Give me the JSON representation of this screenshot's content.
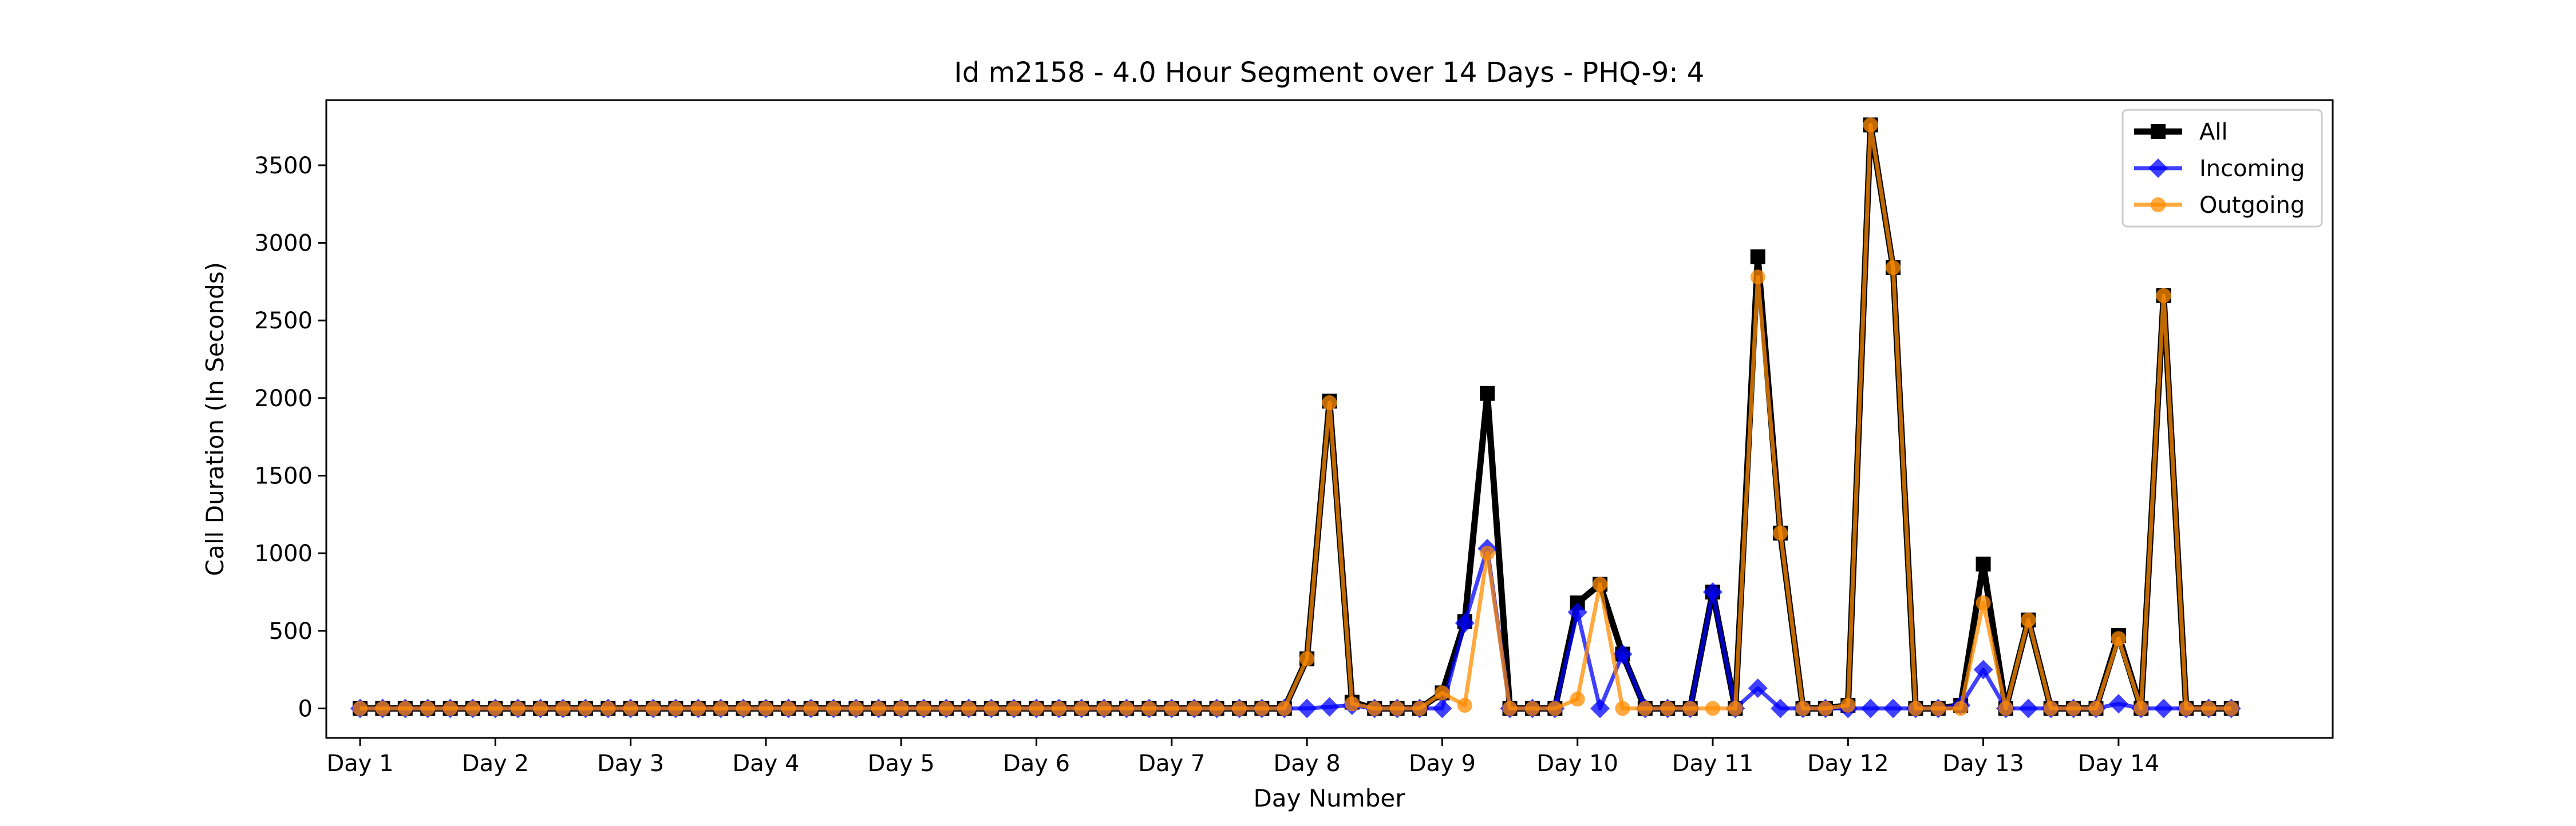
{
  "chart_data": {
    "type": "line",
    "title": "Id m2158 - 4.0 Hour Segment over 14 Days - PHQ-9: 4",
    "xlabel": "Day Number",
    "ylabel": "Call Duration (In Seconds)",
    "xlim": [
      -1.5,
      87.5
    ],
    "ylim": [
      -190,
      3920
    ],
    "grid": false,
    "legend_position": "top-right",
    "x_ticks": [
      {
        "value": 0,
        "label": "Day 1"
      },
      {
        "value": 6,
        "label": "Day 2"
      },
      {
        "value": 12,
        "label": "Day 3"
      },
      {
        "value": 18,
        "label": "Day 4"
      },
      {
        "value": 24,
        "label": "Day 5"
      },
      {
        "value": 30,
        "label": "Day 6"
      },
      {
        "value": 36,
        "label": "Day 7"
      },
      {
        "value": 42,
        "label": "Day 8"
      },
      {
        "value": 48,
        "label": "Day 9"
      },
      {
        "value": 54,
        "label": "Day 10"
      },
      {
        "value": 60,
        "label": "Day 11"
      },
      {
        "value": 66,
        "label": "Day 12"
      },
      {
        "value": 72,
        "label": "Day 13"
      },
      {
        "value": 78,
        "label": "Day 14"
      }
    ],
    "y_ticks": [
      0,
      500,
      1000,
      1500,
      2000,
      2500,
      3000,
      3500
    ],
    "series": [
      {
        "name": "All",
        "color": "#000000",
        "marker": "square",
        "values": [
          0,
          0,
          0,
          0,
          0,
          0,
          0,
          0,
          0,
          0,
          0,
          0,
          0,
          0,
          0,
          0,
          0,
          0,
          0,
          0,
          0,
          0,
          0,
          0,
          0,
          0,
          0,
          0,
          0,
          0,
          0,
          0,
          0,
          0,
          0,
          0,
          0,
          0,
          0,
          0,
          0,
          0,
          320,
          1980,
          40,
          0,
          0,
          0,
          100,
          560,
          2030,
          0,
          0,
          0,
          680,
          800,
          350,
          0,
          0,
          0,
          750,
          0,
          2910,
          1130,
          0,
          0,
          20,
          3760,
          2840,
          0,
          0,
          20,
          930,
          0,
          570,
          0,
          0,
          0,
          470,
          0,
          2660,
          0,
          0,
          0
        ]
      },
      {
        "name": "Incoming",
        "color": "#0000ff",
        "marker": "diamond",
        "values": [
          0,
          0,
          0,
          0,
          0,
          0,
          0,
          0,
          0,
          0,
          0,
          0,
          0,
          0,
          0,
          0,
          0,
          0,
          0,
          0,
          0,
          0,
          0,
          0,
          0,
          0,
          0,
          0,
          0,
          0,
          0,
          0,
          0,
          0,
          0,
          0,
          0,
          0,
          0,
          0,
          0,
          0,
          0,
          10,
          20,
          0,
          0,
          0,
          0,
          550,
          1030,
          0,
          0,
          0,
          620,
          0,
          350,
          0,
          0,
          0,
          750,
          0,
          130,
          0,
          0,
          0,
          0,
          0,
          0,
          0,
          0,
          20,
          250,
          0,
          0,
          0,
          0,
          0,
          30,
          0,
          0,
          0,
          0,
          0
        ]
      },
      {
        "name": "Outgoing",
        "color": "#ff8c00",
        "marker": "circle",
        "values": [
          0,
          0,
          0,
          0,
          0,
          0,
          0,
          0,
          0,
          0,
          0,
          0,
          0,
          0,
          0,
          0,
          0,
          0,
          0,
          0,
          0,
          0,
          0,
          0,
          0,
          0,
          0,
          0,
          0,
          0,
          0,
          0,
          0,
          0,
          0,
          0,
          0,
          0,
          0,
          0,
          0,
          0,
          320,
          1970,
          30,
          0,
          0,
          0,
          100,
          20,
          1000,
          0,
          0,
          0,
          60,
          800,
          0,
          0,
          0,
          0,
          0,
          0,
          2780,
          1130,
          0,
          0,
          20,
          3760,
          2840,
          0,
          0,
          0,
          680,
          0,
          570,
          0,
          0,
          0,
          450,
          0,
          2660,
          0,
          0,
          0
        ]
      }
    ]
  }
}
